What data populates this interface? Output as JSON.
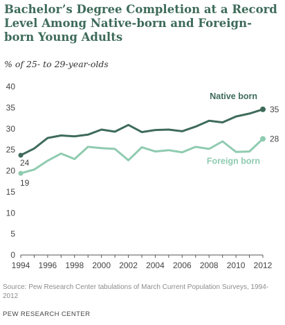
{
  "title": "Bachelor’s Degree Completion at a Record Level Among Native-born and Foreign-born Young Adults",
  "subtitle": "% of 25- to 29-year-olds",
  "source": "Source: Pew Research Center tabulations of March Current Population Surveys, 1994-2012",
  "org": "PEW RESEARCH CENTER",
  "colors": {
    "native": "#3e6b5a",
    "foreign": "#8fcbb0",
    "axis": "#555555",
    "text": "#444444"
  },
  "chart_data": {
    "type": "line",
    "x": [
      1994,
      1995,
      1996,
      1997,
      1998,
      1999,
      2000,
      2001,
      2002,
      2003,
      2004,
      2005,
      2006,
      2007,
      2008,
      2009,
      2010,
      2011,
      2012
    ],
    "xticks": [
      "1994",
      "1996",
      "1998",
      "2000",
      "2002",
      "2004",
      "2006",
      "2008",
      "2010",
      "2012"
    ],
    "yticks": [
      "0",
      "5",
      "10",
      "15",
      "20",
      "25",
      "30",
      "35",
      "40"
    ],
    "ylim": [
      0,
      40
    ],
    "grid": false,
    "series": [
      {
        "name": "Native born",
        "values": [
          23.7,
          25.3,
          27.8,
          28.4,
          28.2,
          28.6,
          29.8,
          29.3,
          30.9,
          29.2,
          29.7,
          29.8,
          29.4,
          30.5,
          31.9,
          31.5,
          32.9,
          33.6,
          34.6
        ],
        "start_label": "24",
        "end_label": "35"
      },
      {
        "name": "Foreign born",
        "values": [
          19.4,
          20.3,
          22.4,
          24.1,
          22.8,
          25.7,
          25.4,
          25.2,
          22.5,
          25.6,
          24.6,
          24.9,
          24.4,
          25.7,
          25.2,
          27.0,
          24.5,
          24.6,
          27.6
        ],
        "start_label": "19",
        "end_label": "28"
      }
    ]
  }
}
